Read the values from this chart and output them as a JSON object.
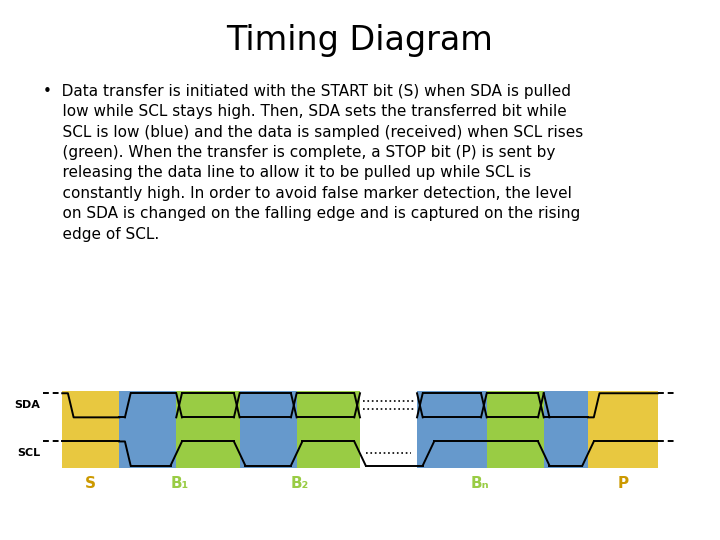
{
  "title": "Timing Diagram",
  "bullet_text_lines": [
    "Data transfer is initiated with the START bit (S) when SDA is pulled",
    "low while SCL stays high. Then, SDA sets the transferred bit while",
    "SCL is low (blue) and the data is sampled (received) when SCL rises",
    "(green). When the transfer is complete, a STOP bit (P) is sent by",
    "releasing the data line to allow it to be pulled up while SCL is",
    "constantly high. In order to avoid false marker detection, the level",
    "on SDA is changed on the falling edge and is captured on the rising",
    "edge of SCL."
  ],
  "color_yellow": "#E8C840",
  "color_blue": "#6699CC",
  "color_green": "#99CC44",
  "color_bg": "#FFFFFF",
  "color_text": "#000000",
  "diagram_label_color": "#CC9900",
  "title_fontsize": 24,
  "body_fontsize": 11,
  "label_fontsize": 11
}
